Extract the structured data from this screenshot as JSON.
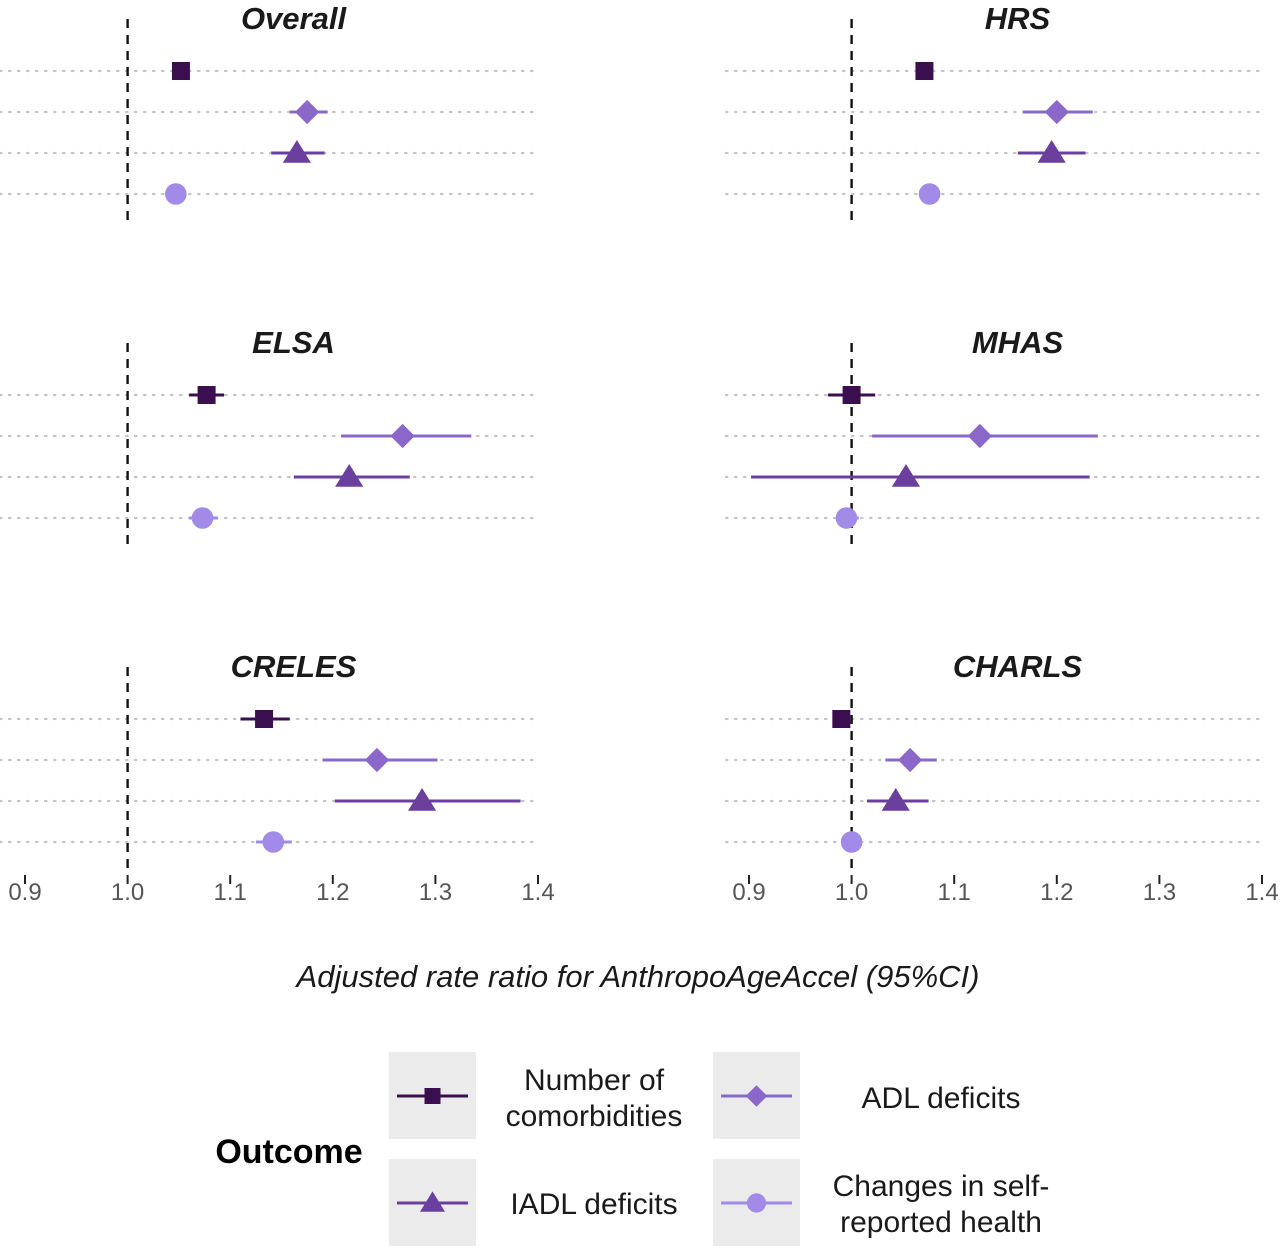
{
  "chart_data": {
    "type": "forest",
    "xlabel": "Adjusted rate ratio for AnthropoAgeAccel (95%CI)",
    "xlim": [
      0.9,
      1.4
    ],
    "xticks": [
      0.9,
      1.0,
      1.1,
      1.2,
      1.3,
      1.4
    ],
    "tick_labels": [
      "0.9",
      "1.0",
      "1.1",
      "1.2",
      "1.3",
      "1.4"
    ],
    "reference_line": 1.0,
    "grid": "horizontal dotted",
    "legend": {
      "title": "Outcome",
      "placement": "bottom",
      "entries": [
        {
          "key": "comorb",
          "lines": [
            "Number of",
            "comorbidities"
          ]
        },
        {
          "key": "adl",
          "lines": [
            "ADL deficits"
          ]
        },
        {
          "key": "iadl",
          "lines": [
            "IADL deficits"
          ]
        },
        {
          "key": "srh",
          "lines": [
            "Changes in self-",
            "reported health"
          ]
        }
      ]
    },
    "outcomes": [
      {
        "key": "comorb",
        "shape": "square",
        "color": "#3b0f4f"
      },
      {
        "key": "adl",
        "shape": "diamond",
        "color": "#8a67c9"
      },
      {
        "key": "iadl",
        "shape": "triangle",
        "color": "#6a3f9e"
      },
      {
        "key": "srh",
        "shape": "circle",
        "color": "#a18ae8"
      }
    ],
    "panels": [
      {
        "title": "Overall",
        "estimates": {
          "comorb": [
            1.052,
            1.052,
            1.052
          ],
          "adl": [
            1.175,
            1.158,
            1.195
          ],
          "iadl": [
            1.165,
            1.14,
            1.192
          ],
          "srh": [
            1.047,
            1.047,
            1.047
          ]
        }
      },
      {
        "title": "HRS",
        "estimates": {
          "comorb": [
            1.071,
            1.071,
            1.071
          ],
          "adl": [
            1.2,
            1.167,
            1.235
          ],
          "iadl": [
            1.195,
            1.162,
            1.228
          ],
          "srh": [
            1.076,
            1.076,
            1.076
          ]
        }
      },
      {
        "title": "ELSA",
        "estimates": {
          "comorb": [
            1.077,
            1.06,
            1.094
          ],
          "adl": [
            1.268,
            1.208,
            1.335
          ],
          "iadl": [
            1.216,
            1.162,
            1.275
          ],
          "srh": [
            1.073,
            1.06,
            1.088
          ]
        }
      },
      {
        "title": "MHAS",
        "estimates": {
          "comorb": [
            1.0,
            0.977,
            1.023
          ],
          "adl": [
            1.125,
            1.02,
            1.24
          ],
          "iadl": [
            1.053,
            0.902,
            1.232
          ],
          "srh": [
            0.995,
            0.985,
            1.007
          ]
        }
      },
      {
        "title": "CRELES",
        "estimates": {
          "comorb": [
            1.133,
            1.11,
            1.158
          ],
          "adl": [
            1.243,
            1.19,
            1.302
          ],
          "iadl": [
            1.287,
            1.202,
            1.383
          ],
          "srh": [
            1.142,
            1.125,
            1.16
          ]
        }
      },
      {
        "title": "CHARLS",
        "estimates": {
          "comorb": [
            0.99,
            0.99,
            0.99
          ],
          "adl": [
            1.057,
            1.033,
            1.083
          ],
          "iadl": [
            1.043,
            1.015,
            1.075
          ],
          "srh": [
            1.0,
            1.0,
            1.0
          ]
        }
      }
    ]
  }
}
